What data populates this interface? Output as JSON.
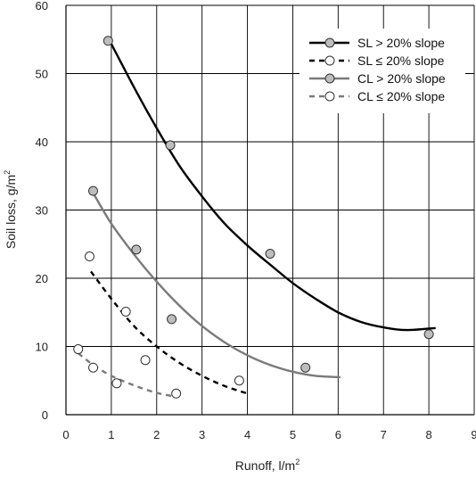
{
  "chart_data": {
    "type": "scatter",
    "xlabel": "Runoff, l/m",
    "xlabel_sup": "2",
    "ylabel": "Soil loss, g/m",
    "ylabel_sup": "2",
    "xlim": [
      0,
      9
    ],
    "ylim": [
      0,
      60
    ],
    "x_ticks": [
      0,
      1,
      2,
      3,
      4,
      5,
      6,
      7,
      8,
      9
    ],
    "y_ticks": [
      0,
      10,
      20,
      30,
      40,
      50,
      60
    ],
    "grid": true,
    "legend_position": "top-right",
    "series": [
      {
        "name": "SL > 20% slope",
        "marker_fill": "#bdbdbd",
        "line_color": "#000000",
        "line_style": "solid",
        "points": [
          [
            0.93,
            54.8
          ],
          [
            2.3,
            39.5
          ],
          [
            4.5,
            23.6
          ],
          [
            8.0,
            11.8
          ]
        ],
        "fit": [
          [
            0.95,
            55.0
          ],
          [
            1.5,
            48.0
          ],
          [
            2.0,
            42.0
          ],
          [
            2.5,
            36.5
          ],
          [
            3.0,
            32.0
          ],
          [
            3.5,
            28.0
          ],
          [
            4.0,
            24.8
          ],
          [
            4.5,
            22.0
          ],
          [
            5.0,
            19.3
          ],
          [
            5.5,
            17.0
          ],
          [
            6.0,
            15.0
          ],
          [
            6.5,
            13.6
          ],
          [
            7.0,
            12.8
          ],
          [
            7.5,
            12.4
          ],
          [
            8.15,
            12.7
          ]
        ]
      },
      {
        "name": "SL ≤ 20% slope",
        "marker_fill": "#ffffff",
        "line_color": "#000000",
        "line_style": "dashed",
        "points": [
          [
            0.52,
            23.2
          ],
          [
            1.32,
            15.1
          ],
          [
            1.75,
            8.0
          ],
          [
            3.82,
            5.0
          ]
        ],
        "fit": [
          [
            0.55,
            21.0
          ],
          [
            1.0,
            17.0
          ],
          [
            1.5,
            13.0
          ],
          [
            2.0,
            10.0
          ],
          [
            2.5,
            7.6
          ],
          [
            3.0,
            5.7
          ],
          [
            3.5,
            4.2
          ],
          [
            4.05,
            3.0
          ]
        ]
      },
      {
        "name": "CL > 20% slope",
        "marker_fill": "#bdbdbd",
        "line_color": "#7a7a7a",
        "line_style": "solid",
        "points": [
          [
            0.6,
            32.8
          ],
          [
            1.55,
            24.2
          ],
          [
            2.33,
            14.0
          ],
          [
            5.28,
            6.9
          ]
        ],
        "fit": [
          [
            0.6,
            32.5
          ],
          [
            1.0,
            28.0
          ],
          [
            1.5,
            23.5
          ],
          [
            2.0,
            19.5
          ],
          [
            2.5,
            16.0
          ],
          [
            3.0,
            13.0
          ],
          [
            3.5,
            10.6
          ],
          [
            4.0,
            8.7
          ],
          [
            4.5,
            7.3
          ],
          [
            5.0,
            6.3
          ],
          [
            5.5,
            5.7
          ],
          [
            6.05,
            5.5
          ]
        ]
      },
      {
        "name": "CL ≤ 20% slope",
        "marker_fill": "#ffffff",
        "line_color": "#7a7a7a",
        "line_style": "dashed",
        "points": [
          [
            0.27,
            9.6
          ],
          [
            0.6,
            6.9
          ],
          [
            1.12,
            4.6
          ],
          [
            2.43,
            3.1
          ]
        ],
        "fit": [
          [
            0.27,
            9.0
          ],
          [
            0.6,
            7.3
          ],
          [
            1.0,
            5.7
          ],
          [
            1.5,
            4.3
          ],
          [
            2.0,
            3.2
          ],
          [
            2.45,
            2.6
          ]
        ]
      }
    ]
  }
}
